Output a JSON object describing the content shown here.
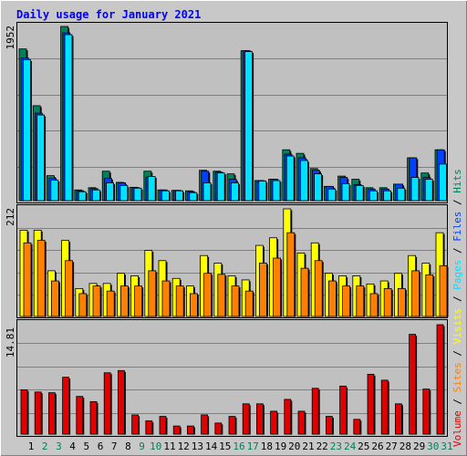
{
  "title": "Daily usage for January 2021",
  "legend": {
    "volume": "Volume",
    "sites": "Sites",
    "visits": "Visits",
    "pages": "Pages",
    "files": "Files",
    "hits": "Hits",
    "separator": " / "
  },
  "colors": {
    "background": "#c8c8c8",
    "plot_background": "#c0c0c0",
    "title": "#0000ff",
    "hits": "#00805c",
    "files": "#0040ff",
    "pages": "#00e0ff",
    "visits": "#ffff00",
    "sites": "#ff8000",
    "volume": "#e00000",
    "weekend_day": "#00805c",
    "weekday": "#000000"
  },
  "chart_data": [
    {
      "type": "bar",
      "panel": "hits-files-pages",
      "x": [
        1,
        2,
        3,
        4,
        5,
        6,
        7,
        8,
        9,
        10,
        11,
        12,
        13,
        14,
        15,
        16,
        17,
        18,
        19,
        20,
        21,
        22,
        23,
        24,
        25,
        26,
        27,
        28,
        29,
        30,
        31
      ],
      "max_label": "1952",
      "ylim": [
        0,
        1952
      ],
      "series": [
        {
          "name": "Hits",
          "values": [
            1700,
            1064,
            280,
            1952,
            120,
            145,
            330,
            205,
            150,
            330,
            120,
            115,
            110,
            340,
            330,
            300,
            1680,
            225,
            240,
            570,
            530,
            360,
            160,
            275,
            240,
            145,
            145,
            185,
            480,
            310,
            570
          ]
        },
        {
          "name": "Files",
          "values": [
            1600,
            980,
            250,
            1880,
            110,
            135,
            250,
            200,
            145,
            260,
            120,
            115,
            100,
            330,
            320,
            240,
            1680,
            225,
            240,
            520,
            480,
            340,
            160,
            260,
            180,
            130,
            130,
            185,
            480,
            260,
            570
          ]
        },
        {
          "name": "Pages",
          "values": [
            1580,
            960,
            230,
            1860,
            100,
            120,
            200,
            170,
            140,
            270,
            110,
            110,
            90,
            200,
            310,
            200,
            1670,
            220,
            225,
            500,
            450,
            300,
            130,
            190,
            170,
            110,
            110,
            140,
            260,
            240,
            410
          ]
        }
      ]
    },
    {
      "type": "bar",
      "panel": "visits-sites",
      "x": [
        1,
        2,
        3,
        4,
        5,
        6,
        7,
        8,
        9,
        10,
        11,
        12,
        13,
        14,
        15,
        16,
        17,
        18,
        19,
        20,
        21,
        22,
        23,
        24,
        25,
        26,
        27,
        28,
        29,
        30,
        31
      ],
      "max_label": "212",
      "ylim": [
        0,
        212
      ],
      "series": [
        {
          "name": "Visits",
          "values": [
            170,
            170,
            90,
            150,
            55,
            65,
            65,
            85,
            80,
            130,
            110,
            75,
            60,
            120,
            105,
            80,
            72,
            140,
            155,
            212,
            125,
            145,
            85,
            80,
            80,
            64,
            70,
            85,
            120,
            105,
            165
          ]
        },
        {
          "name": "Sites",
          "values": [
            145,
            150,
            70,
            110,
            45,
            60,
            50,
            60,
            60,
            90,
            70,
            60,
            45,
            85,
            83,
            60,
            50,
            105,
            115,
            165,
            95,
            110,
            70,
            60,
            60,
            45,
            55,
            55,
            90,
            82,
            100
          ]
        }
      ]
    },
    {
      "type": "bar",
      "panel": "volume",
      "x": [
        1,
        2,
        3,
        4,
        5,
        6,
        7,
        8,
        9,
        10,
        11,
        12,
        13,
        14,
        15,
        16,
        17,
        18,
        19,
        20,
        21,
        22,
        23,
        24,
        25,
        26,
        27,
        28,
        29,
        30,
        31
      ],
      "max_label": "14.81",
      "ylim": [
        0,
        14.81
      ],
      "series": [
        {
          "name": "Volume",
          "values": [
            6.0,
            5.7,
            5.6,
            7.7,
            5.1,
            4.4,
            8.3,
            8.6,
            2.6,
            1.8,
            2.4,
            1.1,
            1.1,
            2.6,
            1.5,
            2.4,
            4.1,
            4.1,
            3.1,
            4.7,
            3.1,
            6.2,
            2.4,
            6.5,
            2.0,
            8.1,
            7.3,
            4.1,
            13.5,
            6.1,
            14.81
          ]
        }
      ]
    }
  ]
}
